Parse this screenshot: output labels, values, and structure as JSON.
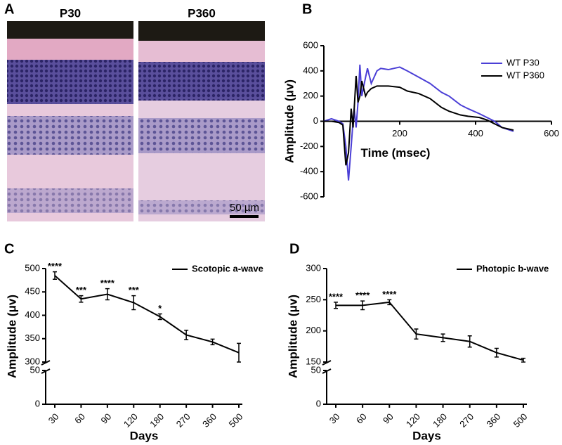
{
  "chart_data": [
    {
      "type": "image",
      "label": "A",
      "panels": [
        "P30",
        "P360"
      ],
      "scale_bar": "50 µm"
    },
    {
      "type": "line",
      "label": "B",
      "xlabel": "Time (msec)",
      "ylabel": "Amplitude (μv)",
      "legend": "upper right",
      "xlim": [
        0,
        600
      ],
      "xticks": [
        200,
        400,
        600
      ],
      "ylim": [
        -600,
        600
      ],
      "yticks": [
        -600,
        -400,
        -200,
        0,
        200,
        400,
        600
      ],
      "x": [
        0,
        20,
        40,
        50,
        58,
        65,
        72,
        77,
        80,
        85,
        90,
        95,
        100,
        110,
        115,
        125,
        140,
        150,
        170,
        200,
        220,
        250,
        280,
        310,
        330,
        360,
        380,
        410,
        430,
        450,
        470,
        500
      ],
      "series": [
        {
          "name": "WT P30",
          "color": "#4b3fd6",
          "values": [
            0,
            20,
            0,
            -20,
            -200,
            -470,
            -200,
            0,
            100,
            -50,
            150,
            450,
            200,
            350,
            420,
            300,
            400,
            420,
            410,
            430,
            400,
            350,
            300,
            230,
            200,
            130,
            100,
            60,
            30,
            0,
            -50,
            -80
          ]
        },
        {
          "name": "WT P360",
          "color": "#000000",
          "values": [
            0,
            0,
            -10,
            -30,
            -350,
            -250,
            100,
            -50,
            100,
            360,
            150,
            200,
            320,
            200,
            230,
            260,
            280,
            280,
            280,
            270,
            240,
            220,
            180,
            110,
            80,
            50,
            40,
            30,
            10,
            -20,
            -50,
            -70
          ]
        }
      ]
    },
    {
      "type": "line",
      "label": "C",
      "xlabel": "Days",
      "ylabel": "Amplitude (μv)",
      "legend": "upper right",
      "categories": [
        "30",
        "60",
        "90",
        "120",
        "180",
        "270",
        "360",
        "500"
      ],
      "ylim": [
        0,
        500
      ],
      "yticks": [
        0,
        50,
        300,
        350,
        400,
        450,
        500
      ],
      "series": [
        {
          "name": "Scotopic a-wave",
          "color": "#000000",
          "values": [
            485,
            435,
            445,
            427,
            397,
            358,
            343,
            320
          ],
          "errors": [
            8,
            7,
            12,
            15,
            6,
            10,
            6,
            20
          ],
          "annotations": [
            "****",
            "***",
            "****",
            "***",
            "*",
            null,
            null,
            null
          ]
        }
      ]
    },
    {
      "type": "line",
      "label": "D",
      "xlabel": "Days",
      "ylabel": "Amplitude (μv)",
      "legend": "upper right",
      "categories": [
        "30",
        "60",
        "90",
        "120",
        "180",
        "270",
        "360",
        "500"
      ],
      "ylim": [
        0,
        300
      ],
      "yticks": [
        0,
        50,
        150,
        200,
        250,
        300
      ],
      "series": [
        {
          "name": "Photopic b-wave",
          "color": "#000000",
          "values": [
            241,
            241,
            246,
            195,
            189,
            183,
            165,
            153
          ],
          "errors": [
            5,
            7,
            4,
            8,
            6,
            9,
            7,
            3
          ],
          "annotations": [
            "****",
            "****",
            "****",
            null,
            null,
            null,
            null,
            null
          ]
        }
      ]
    }
  ]
}
